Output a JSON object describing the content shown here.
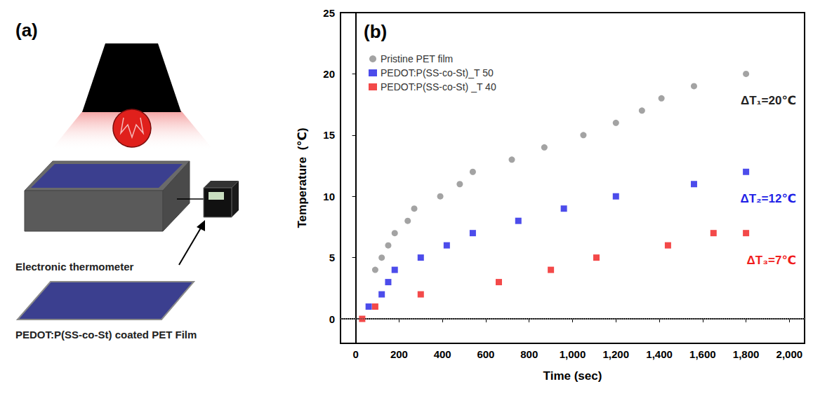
{
  "diagram": {
    "panel": "(a)",
    "labels": {
      "thermometer": "Electronic thermometer",
      "film": "PEDOT:P(SS-co-St) coated PET Film"
    }
  },
  "chart_data": {
    "type": "scatter",
    "title": "(b)",
    "x_label": "Time (sec)",
    "y_label": "Temperature  (℃)",
    "xlim": [
      -70,
      2070
    ],
    "xticks": [
      0,
      200,
      400,
      600,
      800,
      1000,
      1200,
      1400,
      1600,
      1800,
      2000
    ],
    "ylim": [
      -2,
      25
    ],
    "yticks": [
      0,
      5,
      10,
      15,
      20,
      25
    ],
    "baseline": 0,
    "legend": "upper left",
    "series": [
      {
        "name": "Pristine PET film",
        "color": "#8c8c8c",
        "marker": "circle",
        "x": [
          90,
          120,
          150,
          180,
          240,
          270,
          390,
          480,
          540,
          720,
          870,
          1050,
          1200,
          1320,
          1410,
          1560,
          1800
        ],
        "values": [
          4,
          5,
          6,
          7,
          8,
          9,
          10,
          11,
          12,
          13,
          14,
          15,
          16,
          17,
          18,
          19,
          20
        ]
      },
      {
        "name": "PEDOT:P(SS-co-St)_T 50",
        "color": "#1f1fe6",
        "marker": "square",
        "x": [
          60,
          120,
          150,
          180,
          300,
          420,
          540,
          750,
          960,
          1200,
          1560,
          1800
        ],
        "values": [
          1,
          2,
          3,
          4,
          5,
          6,
          7,
          8,
          9,
          10,
          11,
          12
        ]
      },
      {
        "name": "PEDOT:P(SS-co-St) _T 40",
        "color": "#f01c1c",
        "marker": "square",
        "x": [
          30,
          90,
          300,
          660,
          900,
          1110,
          1440,
          1650,
          1800
        ],
        "values": [
          0,
          1,
          2,
          3,
          4,
          5,
          6,
          7,
          7
        ]
      }
    ],
    "annotations": [
      {
        "text": "ΔT₁=20℃",
        "color": "#222222"
      },
      {
        "text": "ΔT₂=12℃",
        "color": "#1f1fe6"
      },
      {
        "text": "ΔT₃=7℃",
        "color": "#f01c1c"
      }
    ]
  }
}
